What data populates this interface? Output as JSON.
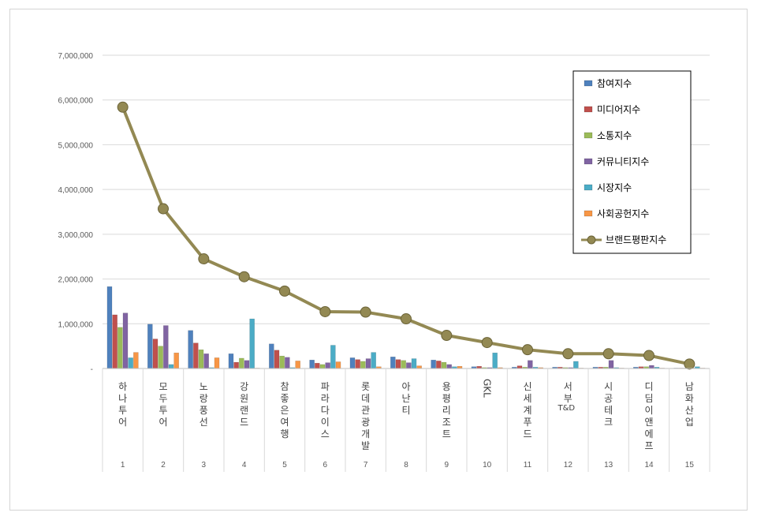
{
  "chart_data": {
    "type": "bar",
    "title": "",
    "xlabel": "",
    "ylabel": "",
    "ylim": [
      0,
      7000000
    ],
    "y_ticks": [
      "-",
      "1,000,000",
      "2,000,000",
      "3,000,000",
      "4,000,000",
      "5,000,000",
      "6,000,000",
      "7,000,000"
    ],
    "grid": true,
    "legend_position": "top-right",
    "categories": [
      "하나투어",
      "모두투어",
      "노랑풍선",
      "강원랜드",
      "참좋은여행",
      "파라다이스",
      "롯데관광개발",
      "아난티",
      "용평리조트",
      "GKL",
      "신세계푸드",
      "서부T&D",
      "시공테크",
      "디딤이앤에프",
      "남화산업"
    ],
    "ranks": [
      "1",
      "2",
      "3",
      "4",
      "5",
      "6",
      "7",
      "8",
      "9",
      "10",
      "11",
      "12",
      "13",
      "14",
      "15"
    ],
    "series": [
      {
        "name": "참여지수",
        "type": "bar",
        "color": "#4f81bd",
        "values": [
          1830000,
          990000,
          850000,
          330000,
          550000,
          190000,
          240000,
          260000,
          190000,
          40000,
          30000,
          30000,
          30000,
          30000,
          10000
        ]
      },
      {
        "name": "미디어지수",
        "type": "bar",
        "color": "#c0504d",
        "values": [
          1200000,
          660000,
          570000,
          140000,
          410000,
          120000,
          200000,
          200000,
          170000,
          50000,
          60000,
          30000,
          30000,
          40000,
          10000
        ]
      },
      {
        "name": "소통지수",
        "type": "bar",
        "color": "#9bbb59",
        "values": [
          920000,
          500000,
          420000,
          230000,
          280000,
          90000,
          160000,
          180000,
          140000,
          20000,
          30000,
          20000,
          30000,
          40000,
          10000
        ]
      },
      {
        "name": "커뮤니티지수",
        "type": "bar",
        "color": "#8064a2",
        "values": [
          1240000,
          960000,
          330000,
          180000,
          250000,
          130000,
          220000,
          130000,
          90000,
          20000,
          180000,
          20000,
          180000,
          70000,
          10000
        ]
      },
      {
        "name": "시장지수",
        "type": "bar",
        "color": "#4bacc6",
        "values": [
          240000,
          90000,
          20000,
          1110000,
          20000,
          520000,
          360000,
          220000,
          40000,
          350000,
          30000,
          160000,
          20000,
          30000,
          40000
        ]
      },
      {
        "name": "사회공헌지수",
        "type": "bar",
        "color": "#f79646",
        "values": [
          360000,
          350000,
          240000,
          10000,
          170000,
          150000,
          40000,
          60000,
          50000,
          20000,
          20000,
          10000,
          10000,
          10000,
          10000
        ]
      },
      {
        "name": "브랜드평판지수",
        "type": "line",
        "color": "#938953",
        "values": [
          5840000,
          3570000,
          2450000,
          2050000,
          1730000,
          1270000,
          1260000,
          1110000,
          740000,
          580000,
          420000,
          330000,
          330000,
          290000,
          100000
        ]
      }
    ]
  }
}
